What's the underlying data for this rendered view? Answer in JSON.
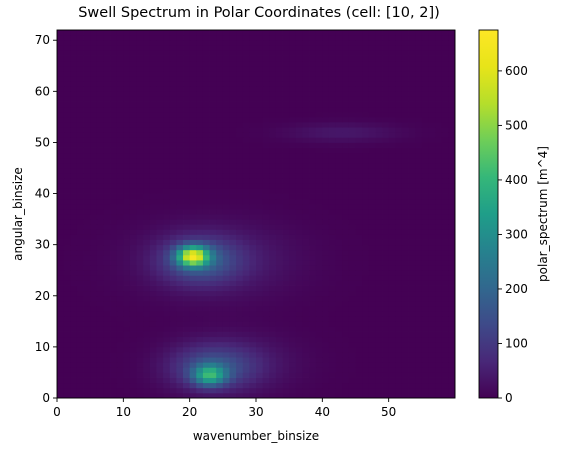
{
  "chart_data": {
    "type": "heatmap",
    "title": "Swell Spectrum in Polar Coordinates (cell: [10, 2])",
    "xlabel": "wavenumber_binsize",
    "ylabel": "angular_binsize",
    "colorbar_label": "polar_spectrum [m^4]",
    "colormap": "viridis",
    "x_range": [
      0,
      60
    ],
    "y_range": [
      0,
      72
    ],
    "x_ticks": [
      0,
      10,
      20,
      30,
      40,
      50
    ],
    "y_ticks": [
      0,
      10,
      20,
      30,
      40,
      50,
      60,
      70
    ],
    "color_range": [
      0,
      675
    ],
    "colorbar_ticks": [
      0,
      100,
      200,
      300,
      400,
      500,
      600
    ],
    "grid": false,
    "peaks": [
      {
        "x": 20.5,
        "y": 27.8,
        "value": 670
      },
      {
        "x": 23.0,
        "y": 4.5,
        "value": 460
      },
      {
        "x": 43.0,
        "y": 52.0,
        "value": 40
      }
    ]
  }
}
